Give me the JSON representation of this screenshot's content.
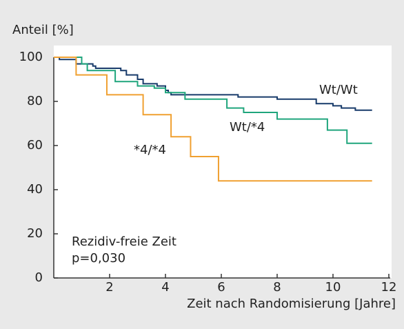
{
  "chart_data": {
    "type": "step",
    "y_label": "Anteil [%]",
    "x_label": "Zeit nach Randomisierung [Jahre]",
    "annotations": [
      "Rezidiv-freie Zeit",
      "p=0,030"
    ],
    "xlim": [
      0,
      12
    ],
    "xticks": [
      2,
      4,
      6,
      8,
      10,
      12
    ],
    "ylim": [
      0,
      100
    ],
    "yticks": [
      0,
      20,
      40,
      60,
      80,
      100
    ],
    "series": [
      {
        "name": "Wt/Wt",
        "color": "#173a6a",
        "x": [
          0,
          0.2,
          0.8,
          1.4,
          1.5,
          2.4,
          2.6,
          3.0,
          3.2,
          3.7,
          4.0,
          4.1,
          4.2,
          6.6,
          8.0,
          9.4,
          10.0,
          10.3,
          10.8,
          11.4
        ],
        "values": [
          100,
          99,
          97,
          96,
          95,
          94,
          92,
          90,
          88,
          87,
          85,
          84,
          83,
          82,
          81,
          79,
          78,
          77,
          76,
          76
        ]
      },
      {
        "name": "Wt/*4",
        "color": "#1fa57c",
        "x": [
          0,
          1.0,
          1.2,
          2.2,
          3.0,
          3.6,
          4.0,
          4.7,
          6.2,
          6.8,
          8.0,
          9.8,
          10.5,
          11.4
        ],
        "values": [
          100,
          97,
          94,
          89,
          87,
          86,
          84,
          81,
          77,
          75,
          72,
          67,
          61,
          61
        ]
      },
      {
        "name": "*4/*4",
        "color": "#f0a030",
        "x": [
          0,
          0.8,
          1.9,
          3.2,
          4.2,
          4.9,
          5.9,
          11.4
        ],
        "values": [
          100,
          92,
          83,
          74,
          64,
          55,
          44,
          44
        ]
      }
    ]
  }
}
